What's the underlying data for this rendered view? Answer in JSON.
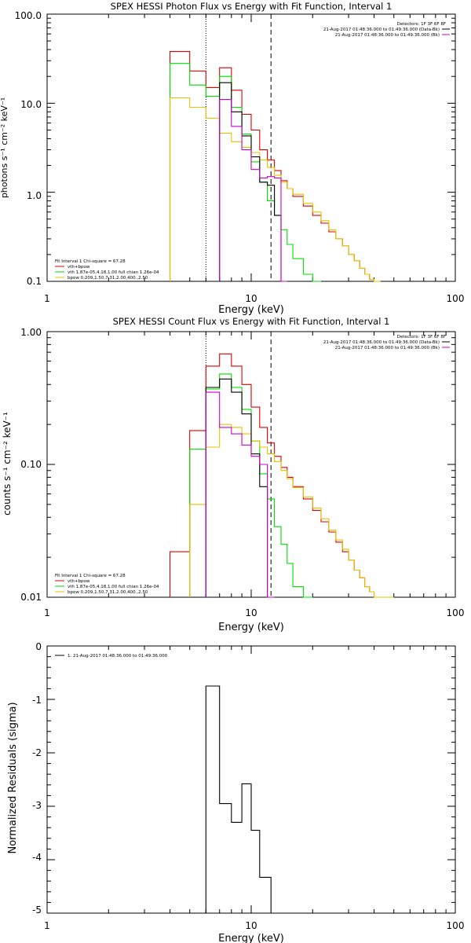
{
  "colors": {
    "data": "#000000",
    "total": "#e00000",
    "vth": "#00dd00",
    "bpow": "#e8c000",
    "component": "#cc00cc",
    "bk": "#0000cc"
  },
  "chart_data": [
    {
      "type": "line",
      "title": "SPEX HESSI Photon Flux vs Energy with Fit Function, Interval 1",
      "xlabel": "Energy (keV)",
      "ylabel": "photons s⁻¹ cm⁻² keV⁻¹",
      "xscale": "log",
      "yscale": "log",
      "xlim": [
        1,
        100
      ],
      "ylim": [
        0.1,
        100
      ],
      "xticks": [
        "1",
        "10",
        "100"
      ],
      "yticks": [
        "0.1",
        "1.0",
        "10.0",
        "100.0"
      ],
      "vlines": [
        {
          "x": 6.0,
          "style": "dotted"
        },
        {
          "x": 12.5,
          "style": "dashed"
        }
      ],
      "legend_top_right": [
        {
          "text": "Detectors: 1F 3F 6F 8F",
          "color": ""
        },
        {
          "text": "21-Aug-2017 01:48:36.000 to 01:49:36.000 (Data-Bk)",
          "color": "data"
        },
        {
          "text": "21-Aug-2017 01:48:36.000 to 01:49:36.000 (Bk)",
          "color": "component"
        }
      ],
      "legend_bottom_left": [
        {
          "text": "Fit Interval 1   Chi-square = 67.28",
          "color": ""
        },
        {
          "text": "vth+bpow",
          "color": "total"
        },
        {
          "text": "vth 1.87e-05,4.18,1.00  full chian 1.26e-04",
          "color": "vth"
        },
        {
          "text": "bpow 0.209,1.50,7.31,2.00,400.,2.50",
          "color": "bpow"
        }
      ],
      "edges": [
        4,
        5,
        6,
        7,
        8,
        9,
        10,
        11,
        12,
        13,
        14,
        15,
        16,
        18,
        20,
        22,
        24,
        26,
        28,
        30,
        32,
        34,
        36,
        38,
        40,
        43,
        46
      ],
      "series": [
        {
          "key": "total",
          "color": "total",
          "start": 0,
          "values": [
            38,
            23,
            15,
            25,
            14,
            7.5,
            5.0,
            3.0,
            2.3,
            1.75,
            1.35,
            1.1,
            0.9,
            0.7,
            0.55,
            0.45,
            0.36,
            0.3,
            0.25,
            0.2,
            0.17,
            0.14,
            0.12,
            0.105,
            0.1
          ]
        },
        {
          "key": "vth",
          "color": "vth",
          "start": 0,
          "values": [
            28,
            16,
            12,
            20,
            9,
            4.5,
            2.2,
            1.3,
            0.8,
            0.55,
            0.38,
            0.26,
            0.18,
            0.12,
            0.1
          ]
        },
        {
          "key": "bpow",
          "color": "bpow",
          "start": 0,
          "values": [
            11.5,
            9.0,
            6.8,
            4.6,
            3.7,
            3.2,
            2.8,
            2.3,
            1.9,
            1.55,
            1.3,
            1.1,
            0.95,
            0.75,
            0.6,
            0.48,
            0.38,
            0.3,
            0.25,
            0.2,
            0.17,
            0.14,
            0.12,
            0.105,
            0.1
          ]
        },
        {
          "key": "data",
          "color": "data",
          "start": 3,
          "values": [
            17,
            8,
            4.3,
            2.5,
            1.3,
            1.2,
            0.55,
            0.1
          ]
        },
        {
          "key": "component",
          "color": "component",
          "start": 3,
          "values": [
            11,
            5.5,
            3.0,
            1.8,
            1.45,
            1.5,
            1.45,
            0.1
          ]
        }
      ]
    },
    {
      "type": "line",
      "title": "SPEX HESSI Count Flux vs Energy with Fit Function, Interval 1",
      "xlabel": "Energy (keV)",
      "ylabel": "counts s⁻¹ cm⁻² keV⁻¹",
      "xscale": "log",
      "yscale": "log",
      "xlim": [
        1,
        100
      ],
      "ylim": [
        0.01,
        1
      ],
      "xticks": [
        "1",
        "10",
        "100"
      ],
      "yticks": [
        "0.01",
        "0.10",
        "1.00"
      ],
      "vlines": [
        {
          "x": 6.0,
          "style": "dotted"
        },
        {
          "x": 12.5,
          "style": "dashed"
        }
      ],
      "legend_top_right": [
        {
          "text": "Detectors: 1F 3F 6F 8F",
          "color": ""
        },
        {
          "text": "21-Aug-2017 01:48:36.000 to 01:49:36.000 (Data-Bk)",
          "color": "data"
        },
        {
          "text": "21-Aug-2017 01:48:36.000 to 01:49:36.000 (Bk)",
          "color": "component"
        }
      ],
      "legend_bottom_left": [
        {
          "text": "Fit Interval 1   Chi-square = 67.28",
          "color": ""
        },
        {
          "text": "vth+bpow",
          "color": "total"
        },
        {
          "text": "vth 1.87e-05,4.18,1.00  full chian 1.26e-04",
          "color": "vth"
        },
        {
          "text": "bpow 0.209,1.50,7.31,2.00,400.,2.50",
          "color": "bpow"
        }
      ],
      "edges": [
        4,
        5,
        6,
        7,
        8,
        9,
        10,
        11,
        12,
        13,
        14,
        15,
        16,
        18,
        20,
        22,
        24,
        26,
        28,
        30,
        32,
        34,
        36,
        38,
        40,
        43,
        46,
        50,
        55,
        60
      ],
      "series": [
        {
          "key": "total",
          "color": "total",
          "start": 0,
          "values": [
            0.022,
            0.18,
            0.55,
            0.68,
            0.55,
            0.4,
            0.27,
            0.19,
            0.145,
            0.115,
            0.095,
            0.08,
            0.068,
            0.055,
            0.045,
            0.037,
            0.031,
            0.026,
            0.022,
            0.019,
            0.016,
            0.014,
            0.012,
            0.011,
            0.01
          ]
        },
        {
          "key": "vth",
          "color": "vth",
          "start": 1,
          "values": [
            0.13,
            0.37,
            0.48,
            0.38,
            0.26,
            0.15,
            0.085,
            0.055,
            0.034,
            0.025,
            0.018,
            0.012,
            0.01
          ]
        },
        {
          "key": "bpow",
          "color": "bpow",
          "start": 1,
          "values": [
            0.05,
            0.135,
            0.2,
            0.19,
            0.17,
            0.15,
            0.135,
            0.12,
            0.105,
            0.09,
            0.078,
            0.067,
            0.057,
            0.047,
            0.039,
            0.032,
            0.027,
            0.023,
            0.019,
            0.016,
            0.014,
            0.012,
            0.011,
            0.01,
            0.01,
            0.01
          ]
        },
        {
          "key": "data",
          "color": "data",
          "start": 2,
          "values": [
            0.38,
            0.44,
            0.35,
            0.24,
            0.12,
            0.068,
            0.01
          ]
        },
        {
          "key": "component",
          "color": "component",
          "start": 2,
          "values": [
            0.35,
            0.19,
            0.17,
            0.14,
            0.115,
            0.1,
            0.01
          ]
        }
      ]
    },
    {
      "type": "line",
      "title": "",
      "xlabel": "Energy (keV)",
      "ylabel": "Normalized Residuals (sigma)",
      "xscale": "log",
      "yscale": "linear",
      "xlim": [
        1,
        100
      ],
      "ylim": [
        -5,
        0
      ],
      "xticks": [
        "1",
        "10",
        "100"
      ],
      "yticks": [
        "-5",
        "-4",
        "-3",
        "-2",
        "-1",
        "0"
      ],
      "legend_top_left": [
        {
          "text": "1. 21-Aug-2017 01:48:36.000 to 01:49:36.000",
          "color": "data"
        }
      ],
      "edges": [
        6,
        7,
        8,
        9,
        10,
        11,
        12.5
      ],
      "series": [
        {
          "key": "residuals",
          "color": "data",
          "start": 0,
          "values": [
            -0.75,
            -2.95,
            -3.3,
            -2.58,
            -3.45,
            -4.33
          ]
        }
      ]
    }
  ]
}
